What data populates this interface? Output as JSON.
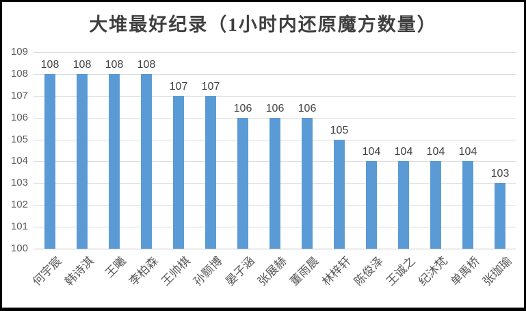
{
  "chart_data": {
    "type": "bar",
    "title": "大堆最好纪录（1小时内还原魔方数量）",
    "categories": [
      "何宇宸",
      "韩诗淇",
      "王曦",
      "李柏森",
      "王帅棋",
      "孙颢博",
      "晏子涵",
      "张展赫",
      "董雨晨",
      "林梓轩",
      "陈俊泽",
      "王诚之",
      "纪沐梵",
      "单禹桥",
      "张珈瑜"
    ],
    "values": [
      108,
      108,
      108,
      108,
      107,
      107,
      106,
      106,
      106,
      105,
      104,
      104,
      104,
      104,
      103
    ],
    "xlabel": "",
    "ylabel": "",
    "ylim": [
      100,
      109
    ],
    "yticks": [
      100,
      101,
      102,
      103,
      104,
      105,
      106,
      107,
      108,
      109
    ],
    "grid": true,
    "legend": false,
    "data_labels_shown": true,
    "x_label_rotation_deg": 45,
    "colors": {
      "bar": "#5B9BD5",
      "gridline": "#D9D9D9",
      "axis_line": "#BFBFBF",
      "tick_label": "#595959",
      "category_label": "#595959",
      "data_label": "#404040",
      "title": "#3F3F3F",
      "background": "#FFFFFF",
      "frame_border": "#000000"
    }
  }
}
